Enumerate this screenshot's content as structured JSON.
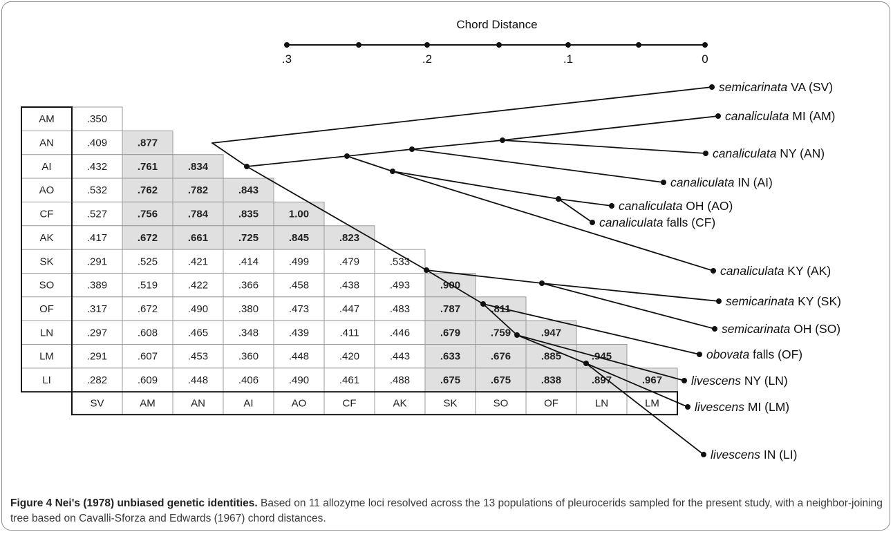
{
  "scale": {
    "title": "Chord Distance",
    "ticks": [
      ".3",
      ".2",
      ".1",
      "0"
    ]
  },
  "row_labels": [
    "AM",
    "AN",
    "AI",
    "AO",
    "CF",
    "AK",
    "SK",
    "SO",
    "OF",
    "LN",
    "LM",
    "LI"
  ],
  "col_labels": [
    "SV",
    "AM",
    "AN",
    "AI",
    "AO",
    "CF",
    "AK",
    "SK",
    "SO",
    "OF",
    "LN",
    "LM"
  ],
  "matrix": [
    [
      ".350"
    ],
    [
      ".409",
      ".877"
    ],
    [
      ".432",
      ".761",
      ".834"
    ],
    [
      ".532",
      ".762",
      ".782",
      ".843"
    ],
    [
      ".527",
      ".756",
      ".784",
      ".835",
      "1.00"
    ],
    [
      ".417",
      ".672",
      ".661",
      ".725",
      ".845",
      ".823"
    ],
    [
      ".291",
      ".525",
      ".421",
      ".414",
      ".499",
      ".479",
      ".533"
    ],
    [
      ".389",
      ".519",
      ".422",
      ".366",
      ".458",
      ".438",
      ".493",
      ".900"
    ],
    [
      ".317",
      ".672",
      ".490",
      ".380",
      ".473",
      ".447",
      ".483",
      ".787",
      ".811"
    ],
    [
      ".297",
      ".608",
      ".465",
      ".348",
      ".439",
      ".411",
      ".446",
      ".679",
      ".759",
      ".947"
    ],
    [
      ".291",
      ".607",
      ".453",
      ".360",
      ".448",
      ".420",
      ".443",
      ".633",
      ".676",
      ".885",
      ".945"
    ],
    [
      ".282",
      ".609",
      ".448",
      ".406",
      ".490",
      ".461",
      ".488",
      ".675",
      ".675",
      ".838",
      ".897",
      ".967"
    ]
  ],
  "leaves": [
    {
      "species": "semicarinata",
      "rest": " VA (SV)"
    },
    {
      "species": "canaliculata",
      "rest": " MI (AM)"
    },
    {
      "species": "canaliculata",
      "rest": " NY (AN)"
    },
    {
      "species": "canaliculata",
      "rest": " IN (AI)"
    },
    {
      "species": "canaliculata",
      "rest": " OH (AO)"
    },
    {
      "species": "canaliculata",
      "rest": " falls (CF)"
    },
    {
      "species": "canaliculata",
      "rest": " KY (AK)"
    },
    {
      "species": "semicarinata",
      "rest": " KY (SK)"
    },
    {
      "species": "semicarinata",
      "rest": " OH (SO)"
    },
    {
      "species": "obovata",
      "rest": " falls (OF)"
    },
    {
      "species": "livescens",
      "rest": " NY (LN)"
    },
    {
      "species": "livescens",
      "rest": " MI (LM)"
    },
    {
      "species": "livescens",
      "rest": " IN (LI)"
    }
  ],
  "caption": {
    "label": "Figure 4 Nei's (1978) unbiased genetic identities.",
    "text": " Based on 11 allozyme loci resolved across the 13 populations of pleurocerids sampled for the present study, with a neighbor-joining tree based on Cavalli-Sforza and Edwards (1967) chord distances."
  },
  "colors": {
    "highlight": "#e0e0e0",
    "line": "#111111"
  }
}
